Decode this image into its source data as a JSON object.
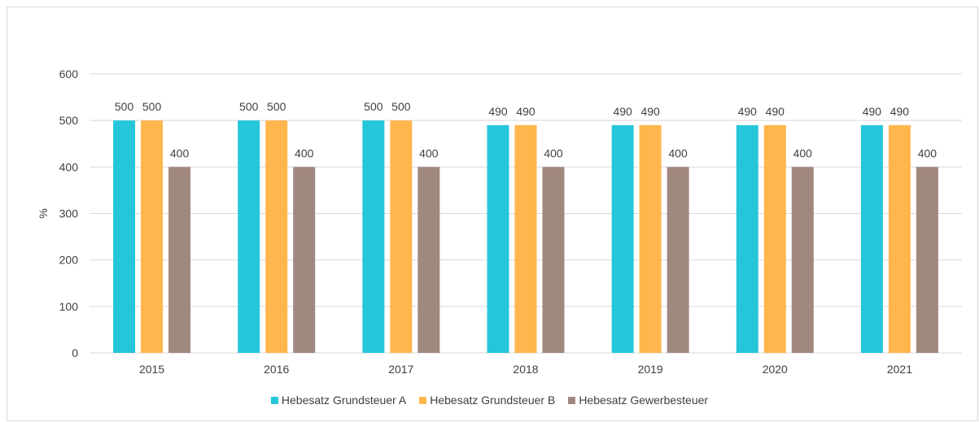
{
  "chart_data": {
    "type": "bar",
    "title": "",
    "xlabel": "",
    "ylabel": "%",
    "ylim": [
      0,
      600
    ],
    "yticks": [
      0,
      100,
      200,
      300,
      400,
      500,
      600
    ],
    "categories": [
      "2015",
      "2016",
      "2017",
      "2018",
      "2019",
      "2020",
      "2021"
    ],
    "series": [
      {
        "name": "Hebesatz Grundsteuer A",
        "color": "#26c6da",
        "values": [
          500,
          500,
          500,
          490,
          490,
          490,
          490
        ]
      },
      {
        "name": "Hebesatz Grundsteuer B",
        "color": "#ffb74d",
        "values": [
          500,
          500,
          500,
          490,
          490,
          490,
          490
        ]
      },
      {
        "name": "Hebesatz Gewerbesteuer",
        "color": "#a1887f",
        "values": [
          400,
          400,
          400,
          400,
          400,
          400,
          400
        ]
      }
    ],
    "grid": true,
    "legend_position": "bottom"
  },
  "colors": {
    "gridline": "#d9d9d9",
    "text": "#404040"
  }
}
